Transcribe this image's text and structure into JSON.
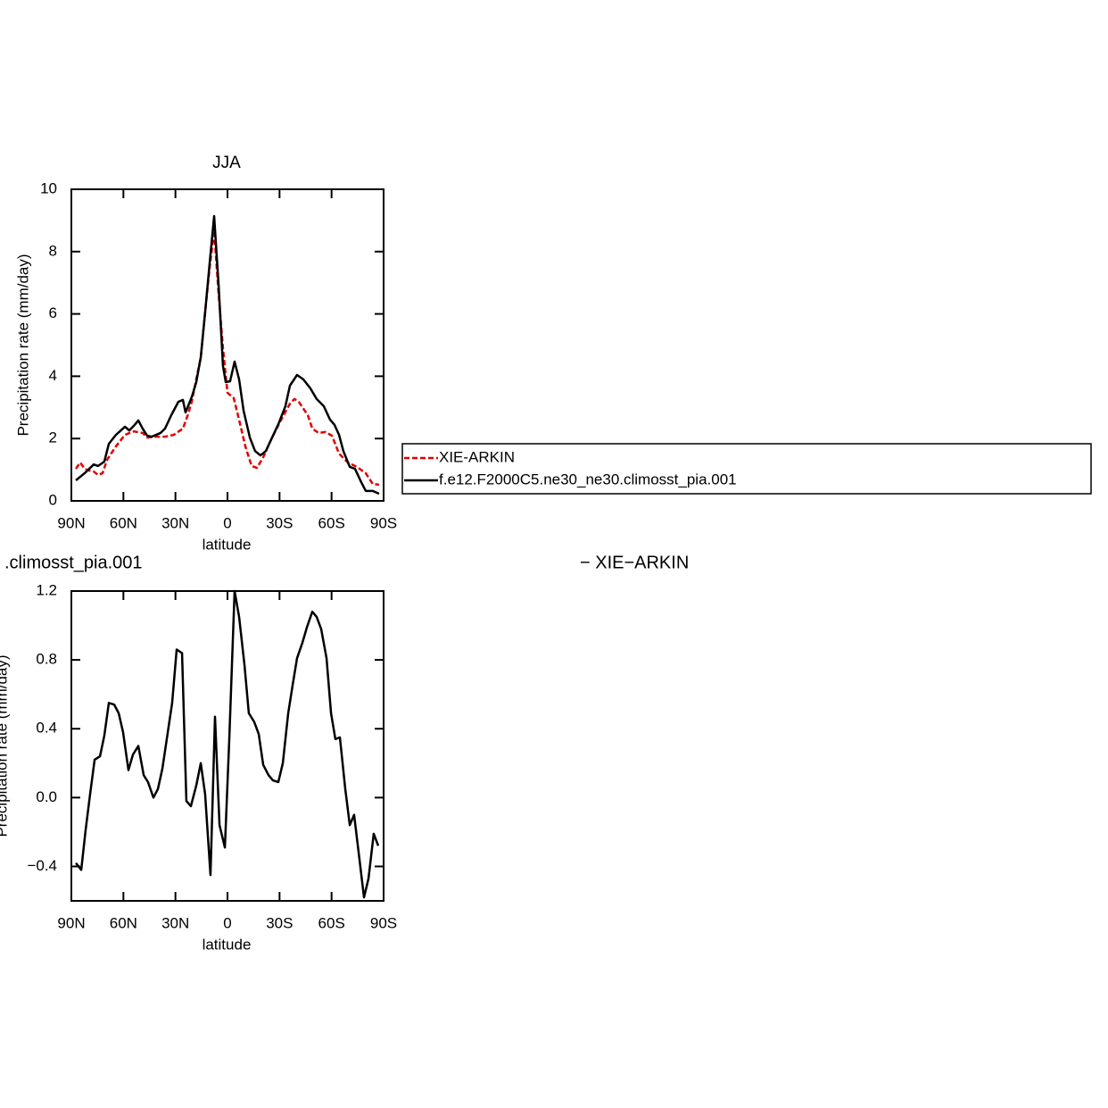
{
  "chart_data": [
    {
      "type": "line",
      "title": "JJA",
      "xlabel": "latitude",
      "ylabel": "Precipitation rate (mm/day)",
      "xlim": [
        90,
        -90
      ],
      "xticks": [
        {
          "value": 90,
          "label": "90N"
        },
        {
          "value": 60,
          "label": "60N"
        },
        {
          "value": 30,
          "label": "30N"
        },
        0,
        {
          "value": -30,
          "label": "30S"
        },
        {
          "value": -60,
          "label": "60S"
        },
        {
          "value": -90,
          "label": "90S"
        }
      ],
      "ylim": [
        0,
        10
      ],
      "yticks": [
        0,
        2,
        4,
        6,
        8,
        10
      ],
      "legend": "right",
      "series": [
        {
          "name": "XIE-ARKIN",
          "color": "#e00000",
          "linestyle": "dashed",
          "x": [
            87.4,
            84.9,
            82.3,
            79.7,
            77.1,
            74.6,
            72.0,
            69.4,
            64.3,
            59.1,
            54.0,
            48.9,
            46.3,
            41.4,
            36.0,
            30.9,
            25.7,
            23.1,
            20.6,
            18.0,
            15.4,
            12.9,
            10.3,
            7.7,
            5.1,
            2.6,
            0.0,
            -3.6,
            -6.7,
            -10.3,
            -13.9,
            -17.0,
            -20.6,
            -25.7,
            -30.9,
            -36.0,
            -38.6,
            -41.1,
            -46.3,
            -48.9,
            -52.5,
            -56.6,
            -60.2,
            -64.3,
            -69.4,
            -74.6,
            -79.7,
            -83.8,
            -87.4
          ],
          "values": [
            1.03,
            1.23,
            1.03,
            0.97,
            0.94,
            0.83,
            0.89,
            1.32,
            1.75,
            2.12,
            2.23,
            2.18,
            2.03,
            2.06,
            2.06,
            2.12,
            2.32,
            2.72,
            3.18,
            3.9,
            4.6,
            6.05,
            7.48,
            8.68,
            6.62,
            4.9,
            3.47,
            3.3,
            2.6,
            1.75,
            1.12,
            1.06,
            1.4,
            2.03,
            2.6,
            3.12,
            3.27,
            3.18,
            2.75,
            2.32,
            2.18,
            2.21,
            2.09,
            1.52,
            1.23,
            1.09,
            0.89,
            0.54,
            0.52
          ]
        },
        {
          "name": "f.e12.F2000C5.ne30_ne30.climosst_pia.001",
          "color": "#000000",
          "linestyle": "solid",
          "x": [
            87.4,
            82.3,
            77.1,
            74.6,
            71.0,
            68.4,
            64.3,
            59.1,
            56.6,
            54.0,
            51.4,
            48.9,
            46.3,
            43.7,
            38.6,
            36.0,
            32.4,
            28.3,
            25.7,
            24.2,
            20.6,
            18.0,
            15.4,
            12.9,
            10.3,
            7.7,
            5.1,
            2.6,
            1.0,
            -1.5,
            -4.1,
            -6.7,
            -9.3,
            -12.9,
            -15.9,
            -19.0,
            -22.1,
            -25.7,
            -29.3,
            -33.4,
            -36.0,
            -40.1,
            -43.7,
            -47.8,
            -51.4,
            -55.5,
            -59.1,
            -61.7,
            -64.3,
            -66.8,
            -70.5,
            -73.5,
            -77.1,
            -79.7,
            -83.8,
            -87.4
          ],
          "values": [
            0.66,
            0.89,
            1.17,
            1.12,
            1.26,
            1.83,
            2.12,
            2.38,
            2.26,
            2.41,
            2.58,
            2.32,
            2.09,
            2.06,
            2.18,
            2.32,
            2.75,
            3.18,
            3.24,
            2.84,
            3.33,
            3.81,
            4.61,
            6.05,
            7.62,
            9.14,
            6.91,
            4.33,
            3.81,
            3.84,
            4.47,
            3.9,
            2.89,
            2.03,
            1.6,
            1.46,
            1.6,
            2.03,
            2.46,
            3.04,
            3.7,
            4.04,
            3.9,
            3.61,
            3.27,
            3.04,
            2.61,
            2.44,
            2.12,
            1.6,
            1.09,
            1.03,
            0.6,
            0.32,
            0.32,
            0.23
          ]
        }
      ]
    },
    {
      "type": "line",
      "title": ".climosst_pia.001",
      "title_right": "− XIE−ARKIN",
      "xlabel": "latitude",
      "ylabel": "Precipitation rate (mm/day)",
      "xlim": [
        90,
        -90
      ],
      "xticks": [
        {
          "value": 90,
          "label": "90N"
        },
        {
          "value": 60,
          "label": "60N"
        },
        {
          "value": 30,
          "label": "30N"
        },
        0,
        {
          "value": -30,
          "label": "30S"
        },
        {
          "value": -60,
          "label": "60S"
        },
        {
          "value": -90,
          "label": "90S"
        }
      ],
      "ylim": [
        -0.6,
        1.2
      ],
      "yticks": [
        {
          "value": -0.4,
          "label": "−0.4"
        },
        {
          "value": 0,
          "label": "0.0"
        },
        0.4,
        0.8,
        1.2
      ],
      "series": [
        {
          "color": "#000000",
          "linestyle": "solid",
          "x": [
            87.4,
            84.3,
            81.8,
            79.2,
            76.6,
            73.5,
            71.0,
            68.4,
            65.3,
            62.7,
            60.2,
            57.1,
            54.5,
            51.4,
            48.3,
            45.8,
            42.7,
            40.1,
            37.5,
            35.0,
            31.9,
            29.3,
            26.2,
            23.7,
            21.1,
            18.0,
            15.4,
            12.9,
            9.8,
            7.2,
            4.6,
            1.5,
            -1.0,
            -4.1,
            -6.7,
            -9.8,
            -12.3,
            -15.4,
            -18.0,
            -20.6,
            -23.7,
            -26.2,
            -29.3,
            -31.9,
            -35.0,
            -37.5,
            -40.1,
            -43.2,
            -45.8,
            -48.9,
            -51.4,
            -54.0,
            -57.1,
            -59.7,
            -62.2,
            -64.8,
            -67.9,
            -70.5,
            -73.0,
            -76.1,
            -78.7,
            -81.3,
            -84.3,
            -86.9
          ],
          "values": [
            -0.38,
            -0.42,
            -0.19,
            0.02,
            0.22,
            0.24,
            0.36,
            0.55,
            0.54,
            0.49,
            0.38,
            0.16,
            0.25,
            0.3,
            0.13,
            0.09,
            0.0,
            0.05,
            0.17,
            0.34,
            0.55,
            0.86,
            0.84,
            -0.02,
            -0.05,
            0.07,
            0.2,
            0.02,
            -0.45,
            0.47,
            -0.16,
            -0.29,
            0.33,
            1.2,
            1.05,
            0.77,
            0.49,
            0.44,
            0.37,
            0.19,
            0.13,
            0.1,
            0.09,
            0.2,
            0.49,
            0.65,
            0.81,
            0.9,
            0.99,
            1.08,
            1.05,
            0.98,
            0.81,
            0.49,
            0.34,
            0.35,
            0.05,
            -0.16,
            -0.1,
            -0.36,
            -0.58,
            -0.47,
            -0.21,
            -0.28
          ]
        }
      ]
    }
  ]
}
